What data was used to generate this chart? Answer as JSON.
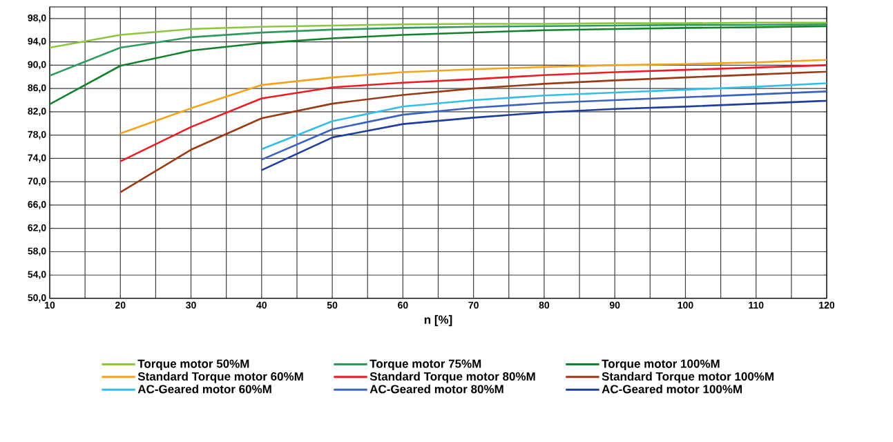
{
  "chart_data": {
    "type": "line",
    "xlabel": "n [%]",
    "xlim": [
      10,
      120
    ],
    "xticks": [
      10,
      20,
      30,
      40,
      50,
      60,
      70,
      80,
      90,
      100,
      110,
      120
    ],
    "ylim": [
      50,
      100
    ],
    "yticks": [
      {
        "value": 50,
        "label": "50,0"
      },
      {
        "value": 54,
        "label": "54,0"
      },
      {
        "value": 58,
        "label": "58,0"
      },
      {
        "value": 62,
        "label": "62,0"
      },
      {
        "value": 66,
        "label": "66,0"
      },
      {
        "value": 70,
        "label": "70,0"
      },
      {
        "value": 74,
        "label": "74,0"
      },
      {
        "value": 78,
        "label": "78,0"
      },
      {
        "value": 82,
        "label": "82,0"
      },
      {
        "value": 86,
        "label": "86,0"
      },
      {
        "value": 90,
        "label": "90,0"
      },
      {
        "value": 94,
        "label": "94,0"
      },
      {
        "value": 98,
        "label": "98,0"
      }
    ],
    "grid": true,
    "legend": "bottom",
    "marker": "none",
    "line_style": "solid",
    "series": [
      {
        "name": "Torque motor  50%M",
        "color": "#8cc63f",
        "x": [
          10,
          20,
          30,
          40,
          50,
          60,
          70,
          80,
          90,
          100,
          110,
          120
        ],
        "values": [
          93,
          95.2,
          96.2,
          96.6,
          96.8,
          97,
          97.1,
          97.1,
          97.2,
          97.2,
          97.3,
          97.3
        ]
      },
      {
        "name": "Torque motor  75%M",
        "color": "#2e9a5e",
        "x": [
          10,
          20,
          30,
          40,
          50,
          60,
          70,
          80,
          90,
          100,
          110,
          120
        ],
        "values": [
          88.2,
          93,
          94.8,
          95.6,
          96.1,
          96.4,
          96.6,
          96.7,
          96.8,
          96.9,
          96.9,
          97
        ]
      },
      {
        "name": "Torque motor  100%M",
        "color": "#12812e",
        "x": [
          10,
          20,
          30,
          40,
          50,
          60,
          70,
          80,
          90,
          100,
          110,
          120
        ],
        "values": [
          83.3,
          89.9,
          92.5,
          93.8,
          94.6,
          95.2,
          95.6,
          96,
          96.2,
          96.4,
          96.5,
          96.7
        ]
      },
      {
        "name": "Standard Torque motor  60%M",
        "color": "#f7a21b",
        "x": [
          20,
          30,
          40,
          50,
          60,
          70,
          80,
          90,
          100,
          110,
          120
        ],
        "values": [
          78.3,
          82.6,
          86.6,
          87.9,
          88.8,
          89.3,
          89.7,
          90,
          90.2,
          90.5,
          90.9
        ]
      },
      {
        "name": "Standard Torque motor  80%M",
        "color": "#ed1c24",
        "x": [
          20,
          30,
          40,
          50,
          60,
          70,
          80,
          90,
          100,
          110,
          120
        ],
        "values": [
          73.5,
          79.4,
          84.3,
          86.2,
          87,
          87.6,
          88.3,
          88.8,
          89.2,
          89.6,
          90
        ]
      },
      {
        "name": "Standard Torque motor  100%M",
        "color": "#9b3a16",
        "x": [
          20,
          30,
          40,
          50,
          60,
          70,
          80,
          90,
          100,
          110,
          120
        ],
        "values": [
          68.2,
          75.5,
          80.9,
          83.4,
          84.9,
          86,
          86.8,
          87.4,
          87.9,
          88.4,
          88.9
        ]
      },
      {
        "name": "AC-Geared motor 60%M",
        "color": "#33bdec",
        "x": [
          40,
          50,
          60,
          70,
          80,
          90,
          100,
          110,
          120
        ],
        "values": [
          75.6,
          80.4,
          82.9,
          84,
          84.8,
          85.3,
          85.8,
          86.3,
          86.9
        ]
      },
      {
        "name": "AC-Geared motor 80%M",
        "color": "#3a62c0",
        "x": [
          40,
          50,
          60,
          70,
          80,
          90,
          100,
          110,
          120
        ],
        "values": [
          73.8,
          79,
          81.5,
          82.7,
          83.5,
          84,
          84.5,
          85,
          85.5
        ]
      },
      {
        "name": "AC-Geared motor 100%M",
        "color": "#1e3d9e",
        "x": [
          40,
          50,
          60,
          70,
          80,
          90,
          100,
          110,
          120
        ],
        "values": [
          72,
          77.6,
          79.9,
          81,
          81.9,
          82.5,
          82.9,
          83.4,
          83.9
        ]
      }
    ]
  }
}
